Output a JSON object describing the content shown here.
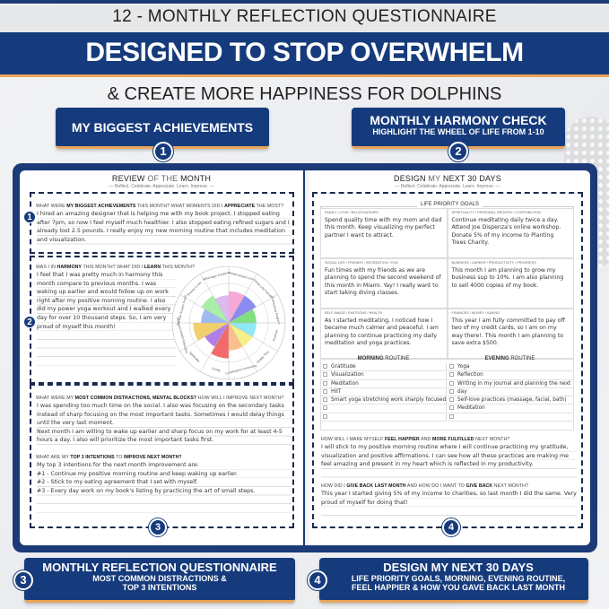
{
  "header": {
    "title": "12 - MONTHLY REFLECTION QUESTIONNAIRE",
    "banner": "DESIGNED TO STOP OVERWHELM",
    "subtitle": "& CREATE MORE HAPPINESS FOR DOLPHINS"
  },
  "callouts": [
    {
      "num": "1",
      "title": "MY BIGGEST ACHIEVEMENTS",
      "sub": ""
    },
    {
      "num": "2",
      "title": "MONTHLY HARMONY CHECK",
      "sub": "HIGHLIGHT THE WHEEL OF LIFE FROM 1-10"
    },
    {
      "num": "3",
      "title": "MONTHLY REFLECTION QUESTIONNAIRE",
      "sub": "MOST COMMON DISTRACTIONS &",
      "sub2": "TOP 3 INTENTIONS"
    },
    {
      "num": "4",
      "title": "DESIGN MY NEXT 30 DAYS",
      "sub": "LIFE PRIORITY GOALS, MORNING, EVENING ROUTINE,",
      "sub2": "FEEL HAPPIER & HOW YOU GAVE BACK LAST MONTH"
    }
  ],
  "left": {
    "title_a": "REVIEW",
    "title_b": " OF THE ",
    "title_c": "MONTH",
    "tagline": "— Reflect. Celebrate. Appreciate. Learn. Improve. —",
    "q1": {
      "a": "WHAT WERE ",
      "b": "MY BIGGEST ACHIEVEMENTS",
      "c": " THIS MONTH? WHAT MOMENTS DID I ",
      "d": "APPRECIATE",
      "e": " THE MOST?"
    },
    "a1": "I hired an amazing designer that is helping me with my book project. I stopped eating after 7pm, so now I feel myself much healthier. I also stopped eating refined sugars and I already lost 2.5 pounds. I really enjoy my new morning routine that includes meditation and visualization.",
    "q2": {
      "a": "WAS I IN ",
      "b": "HARMONY",
      "c": " THIS MONTH? WHAT DID I ",
      "d": "LEARN",
      "e": " THIS MONTH?"
    },
    "a2": "I feel that I was pretty much in harmony this month compare to previous months. I was waking up earlier and would follow up on work right after my positive morning routine. I also did my power yoga workout and I walked every day for over 10 thousand steps. So, I am very proud of myself this month!",
    "wheel": [
      {
        "label": "Relationships/ Love",
        "value": 8,
        "color": "#f7a8d8"
      },
      {
        "label": "Social Life/ Friends",
        "value": 8,
        "color": "#8c8cf0"
      },
      {
        "label": "Professional Progress",
        "value": 7,
        "color": "#7ee07e"
      },
      {
        "label": "Finances",
        "value": 7,
        "color": "#8fe8f5"
      },
      {
        "label": "Quality Time",
        "value": 7,
        "color": "#f5f08a"
      },
      {
        "label": "Contribution/ Community",
        "value": 7,
        "color": "#f9c08e"
      },
      {
        "label": "Family",
        "value": 9,
        "color": "#f26a6a"
      },
      {
        "label": "Spirituality",
        "value": 7,
        "color": "#b07ee8"
      },
      {
        "label": "Personal Growth/ Education",
        "value": 9,
        "color": "#f2cf6e"
      },
      {
        "label": "Physical Growth/ Health",
        "value": 7,
        "color": "#9fbaf0"
      },
      {
        "label": "Beauty/ Looks",
        "value": 8,
        "color": "#a8f0a8"
      },
      {
        "label": "Self-image/ Emotions",
        "value": 7,
        "color": "#dcbaf0"
      }
    ],
    "q3": {
      "a": "WHAT WERE MY ",
      "b": "MOST COMMON DISTRACTIONS, MENTAL BLOCKS?",
      "c": " HOW WILL I IMPROVE NEXT MONTH?"
    },
    "a3": "I was spending too much time on the social. I also was focusing on the secondary tasks instead of sharp focusing on the most important tasks. Sometimes I would delay things until the very last moment.",
    "a3b": "Next month I am willing to wake up earlier and sharp focus on my work for at least 4-5 hours a day. I also will prioritize the most important tasks first.",
    "q4": {
      "a": "WHAT ARE MY ",
      "b": "TOP 3 INTENTIONS",
      "c": " TO ",
      "d": "IMPROVE NEXT MONTH?"
    },
    "a4": [
      "My top 3 intentions for the next month improvement are:",
      "#1 - Continue my positive morning routine and keep waking up earlier.",
      "#2 - Stick to my eating agreement that I set with myself.",
      "#3 - Every day work on my book's listing by practicing the art of small steps."
    ]
  },
  "right": {
    "title_a": "DESIGN",
    "title_b": " MY ",
    "title_c": "NEXT 30 DAYS",
    "tagline": "— Reflect. Celebrate. Appreciate. Learn. Improve. —",
    "goals_title": "LIFE PRIORITY GOALS",
    "goals": [
      {
        "cat": "Family / Love / Relationships",
        "text": "Spend quality time with my mom and dad this month. Keep visualizing my perfect partner I want to attract."
      },
      {
        "cat": "Spirituality / Personal Growth / Contribution",
        "text": "Continue meditating daily twice a day. Attend Joe Dispenza's online workshop. Donate 5% of my income to Planting Trees Charity."
      },
      {
        "cat": "Social Life / Friends / Recreation / Fun",
        "text": "Fun times with my friends as we are planning to spend the second weekend of this month in Miami. Yay! I really want to start taking diving classes."
      },
      {
        "cat": "Business / Career / Productivity / Progress",
        "text": "This month I am planning to grow my business sup to 10%. I am also planning to sell 4000 copies of my book."
      },
      {
        "cat": "Self-image / Emotions / Health",
        "text": "As I started meditating, I noticed how I became much calmer and peaceful. I am planning to continue practicing my daily meditation and yoga practices."
      },
      {
        "cat": "Finances / Money / Saving",
        "text": "This year I am fully committed to pay off two of my credit cards, so I am on my way there!. This month I am planning to save extra $500."
      }
    ],
    "morning": {
      "title_a": "MORNING",
      "title_b": " ROUTINE",
      "items": [
        "Gratitude",
        "Visualization",
        "Meditation",
        "HIIT",
        "Smart yoga stretching work sharply focused",
        "",
        ""
      ]
    },
    "evening": {
      "title_a": "EVENING",
      "title_b": " ROUTINE",
      "items": [
        "Yoga",
        "Reflection",
        "Writing in my journal and planning the next",
        "day",
        "Self-love practices (massage, facial, bath)",
        "Meditation",
        ""
      ]
    },
    "q5": {
      "a": "HOW WILL I MAKE MYSELF ",
      "b": "FEEL HAPPIER",
      "c": " AND ",
      "d": "MORE FULFILLED",
      "e": " NEXT MONTH?"
    },
    "a5": "I will stick to my positive morning routine where I will continue practicing my gratitude, visualization and positive affirmations. I can see how all these practices are making me feel amazing and present in my heart which is reflected in my productivity.",
    "q6": {
      "a": "HOW DID I ",
      "b": "GIVE BACK LAST MONTH",
      "c": " AND HOW DO I WANT TO ",
      "d": "GIVE BACK",
      "e": " NEXT MONTH?"
    },
    "a6": "This year I started giving 5% of my income to charities, so last month I did the same. Very proud of myself for doing that!"
  },
  "colors": {
    "navy": "#163b7c",
    "accent": "#e9a55a"
  }
}
